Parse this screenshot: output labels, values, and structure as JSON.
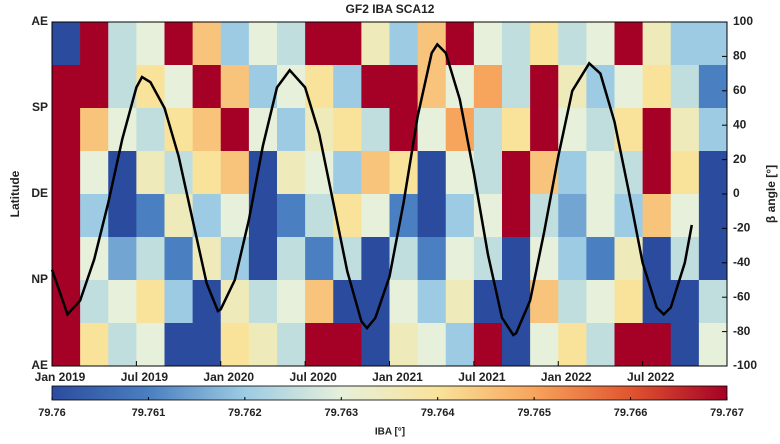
{
  "chart_data": {
    "type": "heatmap",
    "title": "GF2 IBA SCA12",
    "ylabel": "Latitude",
    "yticks": [
      "AE",
      "SP",
      "DE",
      "NP",
      "AE"
    ],
    "xlim": [
      0,
      48
    ],
    "xticks": [
      {
        "value": 0,
        "label": "Jan 2019"
      },
      {
        "value": 6,
        "label": "Jul 2019"
      },
      {
        "value": 12,
        "label": "Jan 2020"
      },
      {
        "value": 18,
        "label": "Jul 2020"
      },
      {
        "value": 24,
        "label": "Jan 2021"
      },
      {
        "value": 30,
        "label": "Jul 2021"
      },
      {
        "value": 36,
        "label": "Jan 2022"
      },
      {
        "value": 42,
        "label": "Jul 2022"
      }
    ],
    "y2label": "β angle [°]",
    "y2lim": [
      -100,
      100
    ],
    "y2ticks": [
      -100,
      -80,
      -60,
      -40,
      -20,
      0,
      20,
      40,
      60,
      80,
      100
    ],
    "zlim": [
      79.76,
      79.767
    ],
    "zticks": [
      79.76,
      79.761,
      79.762,
      79.763,
      79.764,
      79.765,
      79.766,
      79.767
    ],
    "colorbar_label": "IBA [°]",
    "colorscale": [
      "#2b4c9e",
      "#4a7fc1",
      "#9ccbe3",
      "#e6f0da",
      "#f9e39a",
      "#f7a45c",
      "#e0552f",
      "#a50026"
    ],
    "values": [
      [
        79.76,
        79.767,
        79.7625,
        79.763,
        79.767,
        79.7645,
        79.762,
        79.763,
        79.7625,
        79.767,
        79.767,
        79.7635,
        79.762,
        79.7645,
        79.767,
        79.763,
        79.7625,
        79.764,
        79.7625,
        79.763,
        79.767,
        79.7635,
        79.762,
        79.762
      ],
      [
        79.767,
        79.767,
        79.7625,
        79.764,
        79.763,
        79.767,
        79.7645,
        79.762,
        79.763,
        79.764,
        79.762,
        79.767,
        79.767,
        79.7645,
        79.763,
        79.765,
        79.7625,
        79.767,
        79.7635,
        79.762,
        79.763,
        79.764,
        79.7625,
        79.761
      ],
      [
        79.767,
        79.7645,
        79.763,
        79.7625,
        79.764,
        79.7645,
        79.767,
        79.763,
        79.762,
        79.7635,
        79.764,
        79.7625,
        79.767,
        79.763,
        79.765,
        79.7625,
        79.764,
        79.767,
        79.763,
        79.7625,
        79.764,
        79.767,
        79.7635,
        79.762
      ],
      [
        79.767,
        79.763,
        79.76,
        79.7635,
        79.7625,
        79.764,
        79.7645,
        79.76,
        79.7635,
        79.763,
        79.762,
        79.7645,
        79.764,
        79.76,
        79.763,
        79.7625,
        79.767,
        79.7645,
        79.762,
        79.763,
        79.7625,
        79.767,
        79.764,
        79.76
      ],
      [
        79.767,
        79.762,
        79.76,
        79.761,
        79.7635,
        79.762,
        79.763,
        79.76,
        79.761,
        79.7625,
        79.764,
        79.763,
        79.761,
        79.76,
        79.762,
        79.763,
        79.767,
        79.7625,
        79.7615,
        79.763,
        79.762,
        79.7645,
        79.763,
        79.76
      ],
      [
        79.767,
        79.763,
        79.7615,
        79.7625,
        79.761,
        79.7635,
        79.762,
        79.76,
        79.7625,
        79.761,
        79.7625,
        79.76,
        79.7625,
        79.761,
        79.763,
        79.7625,
        79.76,
        79.763,
        79.762,
        79.761,
        79.7635,
        79.76,
        79.7625,
        79.76
      ],
      [
        79.767,
        79.7625,
        79.763,
        79.764,
        79.762,
        79.76,
        79.7635,
        79.7625,
        79.763,
        79.7645,
        79.76,
        79.76,
        79.763,
        79.762,
        79.7635,
        79.76,
        79.76,
        79.7645,
        79.7625,
        79.763,
        79.764,
        79.76,
        79.76,
        79.7625
      ],
      [
        79.767,
        79.764,
        79.7625,
        79.763,
        79.76,
        79.76,
        79.764,
        79.7635,
        79.7625,
        79.767,
        79.767,
        79.76,
        79.7635,
        79.763,
        79.762,
        79.767,
        79.76,
        79.763,
        79.764,
        79.7625,
        79.767,
        79.767,
        79.76,
        79.763
      ]
    ],
    "overlay": {
      "type": "line",
      "axis": "y2",
      "color": "#000000",
      "x": [
        0,
        1.1,
        2,
        3,
        4,
        5,
        6,
        6.4,
        7,
        8,
        9,
        10,
        11,
        11.8,
        12,
        13,
        14,
        15,
        16,
        16.9,
        18,
        19,
        20,
        21,
        22,
        22.4,
        23,
        24,
        25,
        26,
        27,
        27.4,
        28,
        29,
        30,
        31,
        32,
        32.8,
        33,
        34,
        35,
        36,
        37,
        38.2,
        39,
        40,
        41,
        42,
        43,
        43.5,
        44,
        45,
        45.5
      ],
      "values": [
        -44,
        -70,
        -62,
        -38,
        -5,
        32,
        62,
        68,
        65,
        50,
        22,
        -15,
        -52,
        -68,
        -67,
        -50,
        -15,
        28,
        62,
        72,
        62,
        35,
        -5,
        -45,
        -74,
        -78,
        -72,
        -48,
        -5,
        45,
        82,
        87,
        82,
        55,
        12,
        -35,
        -72,
        -82,
        -81,
        -62,
        -22,
        22,
        60,
        76,
        70,
        42,
        2,
        -40,
        -66,
        -70,
        -66,
        -40,
        -18
      ]
    }
  }
}
